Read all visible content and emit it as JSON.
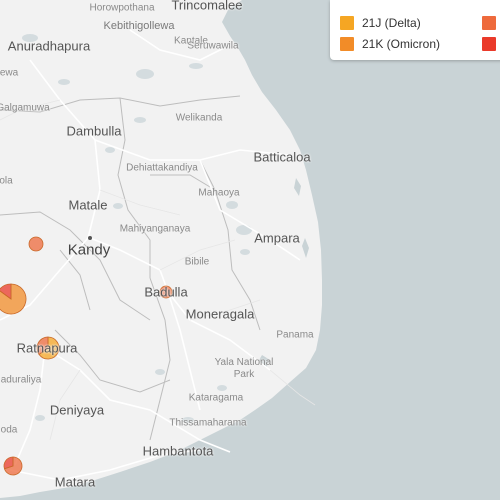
{
  "map": {
    "places": {
      "trincomalee": "Trincomalee",
      "horowpothana": "Horowpothana",
      "anuradhapura": "Anuradhapura",
      "kebithigollewa": "Kebithigollewa",
      "seruwawila": "Seruwawila",
      "kantale": "Kantale",
      "ewa": "ewa",
      "galgamuwa": "Galgamuwa",
      "dambulla": "Dambulla",
      "welikanda": "Welikanda",
      "batticaloa": "Batticaloa",
      "dehiattakandiya": "Dehiattakandiya",
      "ola": "ola",
      "mahaoya": "Mahaoya",
      "matale": "Matale",
      "mahiyanganaya": "Mahiyanganaya",
      "ampara": "Ampara",
      "kandy": "Kandy",
      "bibile": "Bibile",
      "badulla": "Badulla",
      "moneragala": "Moneragala",
      "panama": "Panama",
      "ratnapura": "Ratnapura",
      "yala_national_park": "Yala National Park",
      "aduraliya": "aduraliya",
      "kataragama": "Kataragama",
      "deniyaya": "Deniyaya",
      "oda": "oda",
      "thissamaharama": "Thissamaharama",
      "hambantota": "Hambantota",
      "matara": "Matara"
    },
    "point_marker_kandy": "city-dot"
  },
  "legend": {
    "items": [
      {
        "label": "21J (Delta)",
        "color": "#f5a623"
      },
      {
        "label": "21K (Omicron)",
        "color": "#f28c28"
      },
      {
        "label": "",
        "color": "#ee6a3c"
      },
      {
        "label": "",
        "color": "#ea3a2a"
      }
    ]
  },
  "colors": {
    "land": "#f2f2f2",
    "water": "#c9d3d6",
    "road": "#ffffff",
    "border": "#b8b8b8",
    "delta": "#f5a623",
    "omicron": "#f28c28",
    "lineage_3": "#ee6a3c",
    "lineage_4": "#ea3a2a"
  },
  "clusters": [
    {
      "id": "cluster-west-small",
      "composition": [
        {
          "lineage": "lineage_3",
          "share": 1
        }
      ]
    },
    {
      "id": "cluster-kegalle",
      "composition": [
        {
          "lineage": "omicron",
          "share": 0.85
        },
        {
          "lineage": "lineage_4",
          "share": 0.15
        }
      ]
    },
    {
      "id": "cluster-badulla",
      "composition": [
        {
          "lineage": "lineage_3",
          "share": 1
        }
      ]
    },
    {
      "id": "cluster-ratnapura",
      "composition": [
        {
          "lineage": "delta",
          "share": 0.65
        },
        {
          "lineage": "lineage_3",
          "share": 0.35
        }
      ]
    },
    {
      "id": "cluster-matara",
      "composition": [
        {
          "lineage": "lineage_3",
          "share": 0.7
        },
        {
          "lineage": "lineage_4",
          "share": 0.3
        }
      ]
    }
  ]
}
